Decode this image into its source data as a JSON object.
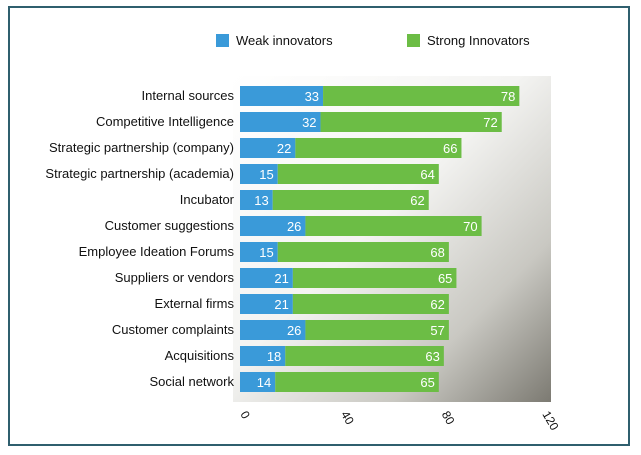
{
  "chart_data": {
    "type": "bar",
    "orientation": "horizontal",
    "stacked": true,
    "categories": [
      "Internal sources",
      "Competitive Intelligence",
      "Strategic partnership (company)",
      "Strategic partnership (academia)",
      "Incubator",
      "Customer suggestions",
      "Employee Ideation Forums",
      "Suppliers or vendors",
      "External firms",
      "Customer complaints",
      "Acquisitions",
      "Social network"
    ],
    "series": [
      {
        "name": "Weak innovators",
        "color": "#3a9ad9",
        "values": [
          33,
          32,
          22,
          15,
          13,
          26,
          15,
          21,
          21,
          26,
          18,
          14
        ]
      },
      {
        "name": "Strong Innovators",
        "color": "#6cbd45",
        "values": [
          78,
          72,
          66,
          64,
          62,
          70,
          68,
          65,
          62,
          57,
          63,
          65
        ]
      }
    ],
    "xlim": [
      0,
      120
    ],
    "xticks": [
      "0",
      "40",
      "80",
      "120"
    ],
    "legend_position": "top",
    "grid": false
  }
}
